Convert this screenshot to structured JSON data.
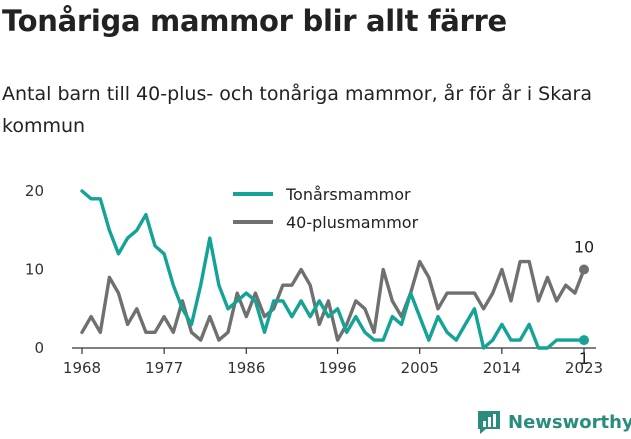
{
  "title": "Tonåriga mammor blir allt färre",
  "subtitle": "Antal barn till 40-plus- och tonåriga mammor, år för år i Skara kommun",
  "brand": "Newsworthy",
  "colors": {
    "teen": "#14a394",
    "forty": "#707070",
    "brand": "#2a8c7c",
    "axis": "#333333"
  },
  "chart_data": {
    "type": "line",
    "x": [
      1968,
      1969,
      1970,
      1971,
      1972,
      1973,
      1974,
      1975,
      1976,
      1977,
      1978,
      1979,
      1980,
      1981,
      1982,
      1983,
      1984,
      1985,
      1986,
      1987,
      1988,
      1989,
      1990,
      1991,
      1992,
      1993,
      1994,
      1995,
      1996,
      1997,
      1998,
      1999,
      2000,
      2001,
      2002,
      2003,
      2004,
      2005,
      2006,
      2007,
      2008,
      2009,
      2010,
      2011,
      2012,
      2013,
      2014,
      2015,
      2016,
      2017,
      2018,
      2019,
      2020,
      2021,
      2022,
      2023
    ],
    "series": [
      {
        "name": "Tonårsmammor",
        "values": [
          20,
          19,
          19,
          15,
          12,
          14,
          15,
          17,
          13,
          12,
          8,
          5,
          3,
          8,
          14,
          8,
          5,
          6,
          7,
          6,
          2,
          6,
          6,
          4,
          6,
          4,
          6,
          4,
          5,
          2,
          4,
          2,
          1,
          1,
          4,
          3,
          7,
          4,
          1,
          4,
          2,
          1,
          3,
          5,
          0,
          1,
          3,
          1,
          1,
          3,
          0,
          0,
          1,
          1,
          1,
          1
        ]
      },
      {
        "name": "40-plusmammor",
        "values": [
          2,
          4,
          2,
          9,
          7,
          3,
          5,
          2,
          2,
          4,
          2,
          6,
          2,
          1,
          4,
          1,
          2,
          7,
          4,
          7,
          4,
          5,
          8,
          8,
          10,
          8,
          3,
          6,
          1,
          3,
          6,
          5,
          2,
          10,
          6,
          4,
          7,
          11,
          9,
          5,
          7,
          7,
          7,
          7,
          5,
          7,
          10,
          6,
          11,
          11,
          6,
          9,
          6,
          8,
          7,
          10
        ]
      }
    ],
    "xticks": [
      1968,
      1977,
      1986,
      1996,
      2005,
      2014,
      2023
    ],
    "yticks": [
      0,
      10,
      20
    ],
    "xlim": [
      1968,
      2023
    ],
    "ylim": [
      0,
      20
    ],
    "end_labels": [
      "1",
      "10"
    ],
    "legend_position": "top-center",
    "grid": false
  }
}
